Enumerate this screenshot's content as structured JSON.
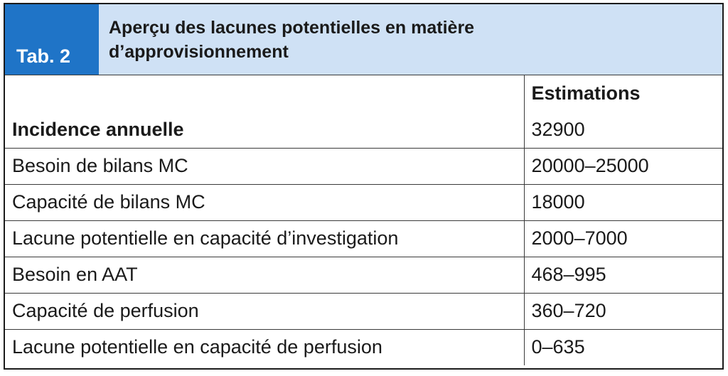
{
  "caption": {
    "tab": "Tab. 2",
    "title_line1": "Aperçu des lacunes potentielles en matière",
    "title_line2": "d’approvisionnement"
  },
  "table": {
    "header": [
      "",
      "Estimations"
    ],
    "rows": [
      {
        "label": "Incidence annuelle",
        "value": "32900",
        "bold": true
      },
      {
        "label": "Besoin de bilans MC",
        "value": "20000–25000"
      },
      {
        "label": "Capacité de bilans MC",
        "value": "18000"
      },
      {
        "label": "Lacune potentielle en capacité d’investigation",
        "value": "2000–7000"
      },
      {
        "label": "Besoin en AAT",
        "value": "468–995"
      },
      {
        "label": "Capacité de perfusion",
        "value": "360–720"
      },
      {
        "label": "Lacune potentielle en capacité de perfusion",
        "value": "0–635"
      }
    ]
  },
  "colors": {
    "tab_bg": "#1f74c7",
    "title_bg": "#cfe1f5",
    "border": "#1b1b1b"
  }
}
